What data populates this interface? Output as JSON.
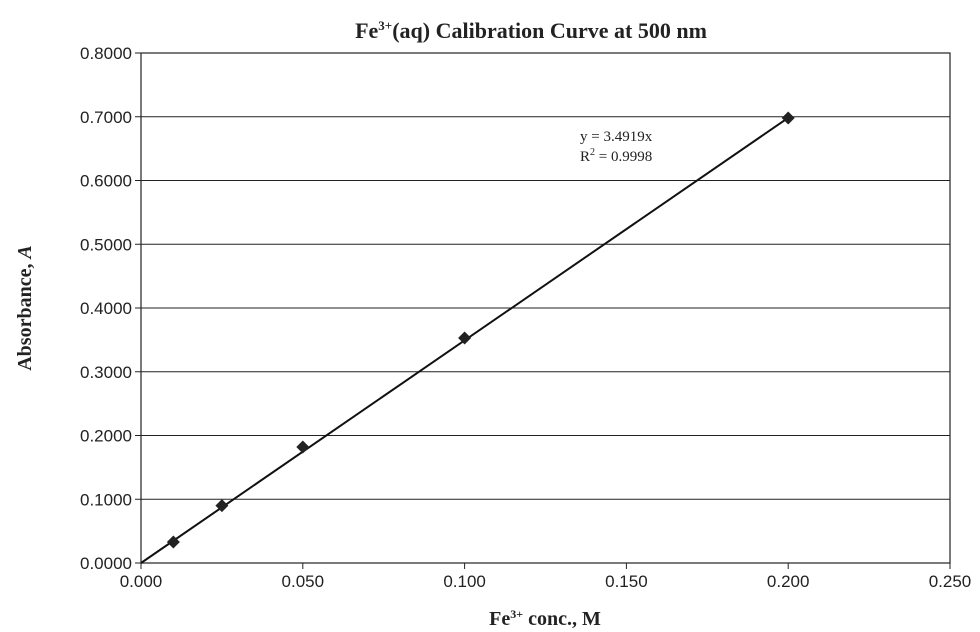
{
  "chart_data": {
    "type": "scatter",
    "title": {
      "base": "Fe",
      "sup": "3+",
      "rest": "(aq) Calibration Curve at 500 nm"
    },
    "xlabel": {
      "base": "Fe",
      "sup": "3+",
      "rest": " conc., M"
    },
    "ylabel": {
      "base": "Absorbance, ",
      "italic": "A"
    },
    "xlim": [
      0,
      0.25
    ],
    "ylim": [
      0,
      0.8
    ],
    "xticks": [
      "0.000",
      "0.050",
      "0.100",
      "0.150",
      "0.200",
      "0.250"
    ],
    "yticks": [
      "0.0000",
      "0.1000",
      "0.2000",
      "0.3000",
      "0.4000",
      "0.5000",
      "0.6000",
      "0.7000",
      "0.8000"
    ],
    "grid": "horizontal",
    "legend": "none",
    "series": [
      {
        "x": [
          0.01,
          0.025,
          0.05,
          0.1,
          0.2
        ],
        "y": [
          0.033,
          0.09,
          0.182,
          0.353,
          0.698
        ],
        "marker": "diamond",
        "color": "#222222"
      }
    ],
    "trendline": {
      "slope": 3.4919,
      "intercept": 0,
      "x_range": [
        0,
        0.2
      ],
      "equation": "y = 3.4919x",
      "r2_base": "R",
      "r2_sup": "2",
      "r2_rest": " = 0.9998"
    }
  }
}
